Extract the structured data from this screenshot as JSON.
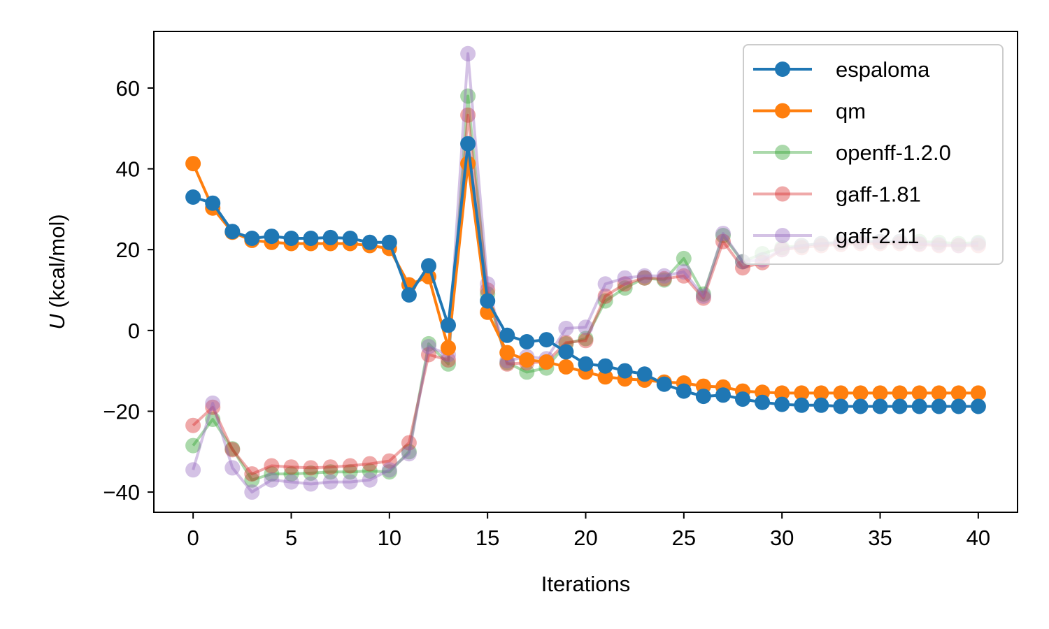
{
  "chart_data": {
    "type": "line",
    "xlabel": "Iterations",
    "ylabel_symbol": "U",
    "ylabel_unit": " (kcal/mol)",
    "xlim": [
      -2,
      42
    ],
    "ylim": [
      -45,
      74
    ],
    "xticks": [
      0,
      5,
      10,
      15,
      20,
      25,
      30,
      35,
      40
    ],
    "yticks": [
      -40,
      -20,
      0,
      20,
      40,
      60
    ],
    "ytick_labels": [
      "−40",
      "−20",
      "0",
      "20",
      "40",
      "60"
    ],
    "grid": false,
    "legend_position": "top-right",
    "x": [
      0,
      1,
      2,
      3,
      4,
      5,
      6,
      7,
      8,
      9,
      10,
      11,
      12,
      13,
      14,
      15,
      16,
      17,
      18,
      19,
      20,
      21,
      22,
      23,
      24,
      25,
      26,
      27,
      28,
      29,
      30,
      31,
      32,
      33,
      34,
      35,
      36,
      37,
      38,
      39,
      40
    ],
    "series": [
      {
        "name": "espaloma",
        "color": "#1f77b4",
        "alpha": 1.0,
        "values": [
          33,
          31.5,
          24.5,
          22.8,
          23.3,
          22.8,
          22.8,
          23.0,
          22.8,
          21.8,
          21.8,
          8.8,
          16.0,
          1.3,
          46.2,
          7.3,
          -1.2,
          -2.8,
          -2.3,
          -5.3,
          -8.3,
          -8.8,
          -10.0,
          -10.8,
          -13.3,
          -15.0,
          -16.3,
          -16.0,
          -17.0,
          -17.8,
          -18.3,
          -18.5,
          -18.5,
          -18.8,
          -18.8,
          -18.8,
          -18.8,
          -18.8,
          -18.8,
          -18.8,
          -18.8
        ]
      },
      {
        "name": "qm",
        "color": "#ff7f0e",
        "alpha": 1.0,
        "values": [
          41.3,
          30.3,
          24.3,
          22.3,
          21.8,
          21.5,
          21.5,
          21.5,
          21.5,
          21.0,
          20.3,
          11.3,
          13.3,
          -4.3,
          41.3,
          4.5,
          -5.5,
          -7.3,
          -7.8,
          -9.0,
          -10.3,
          -11.5,
          -12.0,
          -12.3,
          -12.8,
          -13.0,
          -13.8,
          -14.0,
          -15.0,
          -15.3,
          -15.5,
          -15.5,
          -15.5,
          -15.5,
          -15.5,
          -15.5,
          -15.5,
          -15.5,
          -15.5,
          -15.5,
          -15.5
        ]
      },
      {
        "name": "openff-1.2.0",
        "color": "#2ca02c",
        "alpha": 0.4,
        "values": [
          -28.5,
          -22.0,
          -29.3,
          -37.0,
          -35.5,
          -35.5,
          -35.3,
          -35.0,
          -35.0,
          -34.8,
          -35.0,
          -30.0,
          -3.3,
          -8.3,
          58.0,
          9.0,
          -8.0,
          -10.3,
          -9.3,
          -3.3,
          -2.0,
          7.3,
          10.5,
          13.0,
          12.5,
          17.8,
          9.0,
          23.5,
          17.0,
          19.0,
          20.5,
          21.0,
          21.5,
          21.8,
          22.0,
          22.0,
          22.0,
          22.0,
          21.8,
          21.5,
          21.8
        ]
      },
      {
        "name": "gaff-1.81",
        "color": "#d62728",
        "alpha": 0.4,
        "values": [
          -23.5,
          -19.0,
          -29.5,
          -35.5,
          -33.5,
          -33.8,
          -34.0,
          -33.8,
          -33.5,
          -33.0,
          -32.3,
          -27.8,
          -6.0,
          -7.3,
          53.3,
          10.0,
          -8.3,
          -8.0,
          -7.8,
          -3.0,
          -2.5,
          8.5,
          11.5,
          13.0,
          12.8,
          13.5,
          8.0,
          22.0,
          15.5,
          16.8,
          20.0,
          20.5,
          21.0,
          21.3,
          21.5,
          21.5,
          21.5,
          21.3,
          21.0,
          21.0,
          21.0
        ]
      },
      {
        "name": "gaff-2.11",
        "color": "#9467bd",
        "alpha": 0.4,
        "values": [
          -34.5,
          -18.0,
          -34.0,
          -40.0,
          -37.0,
          -37.5,
          -38.0,
          -37.5,
          -37.5,
          -37.0,
          -34.5,
          -30.5,
          -4.0,
          -6.0,
          68.5,
          11.5,
          -7.5,
          -6.5,
          -7.0,
          0.5,
          0.8,
          11.5,
          13.0,
          13.5,
          13.5,
          14.5,
          8.5,
          24.0,
          17.0,
          17.5,
          20.0,
          21.0,
          21.5,
          21.8,
          22.0,
          22.0,
          22.0,
          21.5,
          21.3,
          21.0,
          21.5
        ]
      }
    ]
  }
}
